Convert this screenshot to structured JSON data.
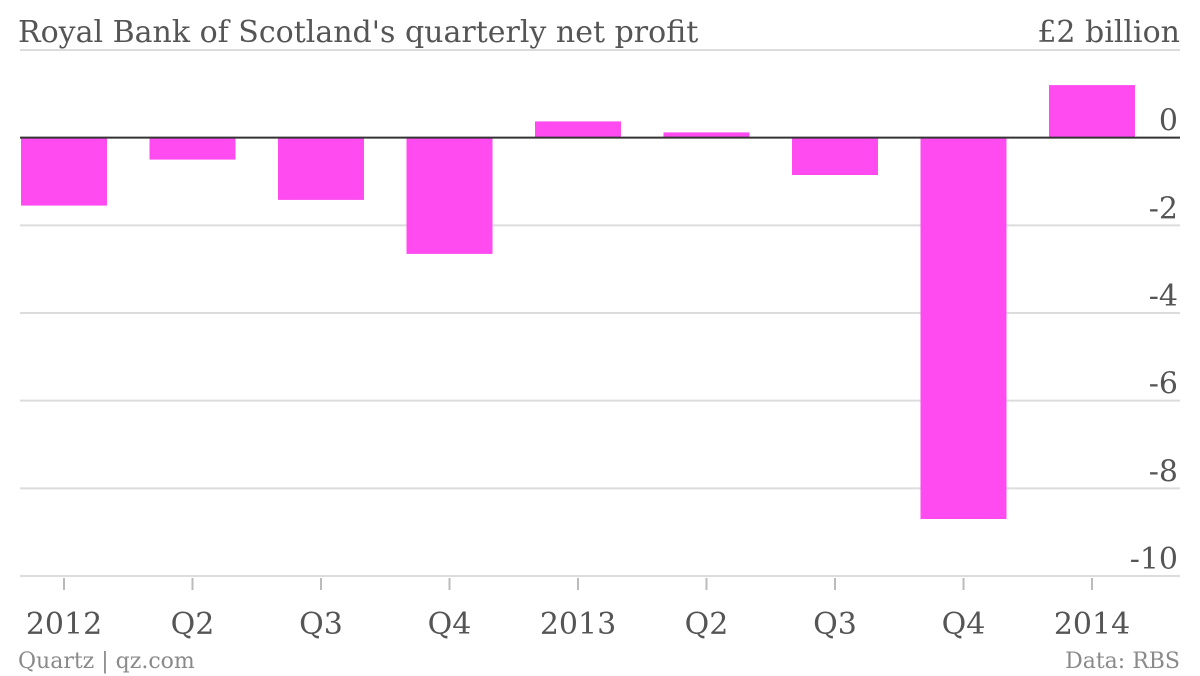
{
  "chart_data": {
    "type": "bar",
    "title": "Royal Bank of Scotland's quarterly net profit",
    "unit_label": "£2 billion",
    "categories": [
      "2012",
      "Q2",
      "Q3",
      "Q4",
      "2013",
      "Q2",
      "Q3",
      "Q4",
      "2014"
    ],
    "values": [
      -1.55,
      -0.5,
      -1.42,
      -2.65,
      0.37,
      0.12,
      -0.85,
      -8.7,
      1.2
    ],
    "ylim": [
      -10,
      2
    ],
    "yticks": [
      0,
      -2,
      -4,
      -6,
      -8,
      -10
    ],
    "ytick_labels": [
      "0",
      "-2",
      "-4",
      "-6",
      "-8",
      "-10"
    ],
    "grid": true,
    "bar_color": "#ff4bf0"
  },
  "footer": {
    "source_left": "Quartz | qz.com",
    "source_right": "Data: RBS"
  }
}
